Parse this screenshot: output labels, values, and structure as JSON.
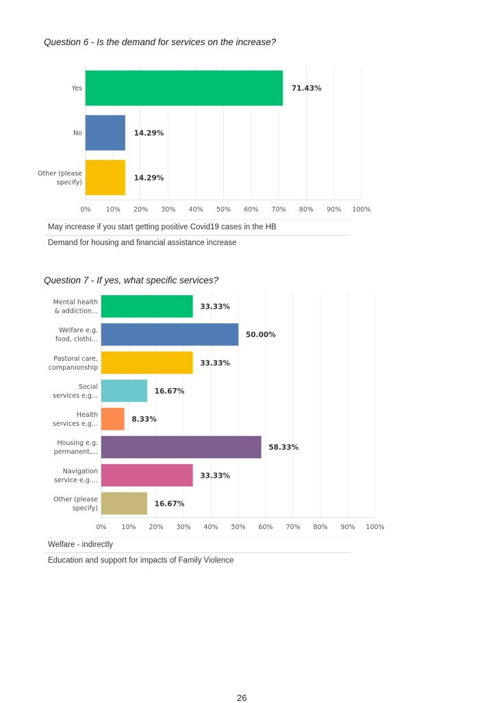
{
  "page": {
    "page_number": "26"
  },
  "questions": [
    {
      "title": "Question 6 - Is the demand for services on the increase?",
      "comments": [
        "May increase if you start getting positive Covid19 cases in the HB",
        "Demand for housing and financial assistance increase"
      ]
    },
    {
      "title": "Question 7 - If yes, what specific services?",
      "comments": [
        "Welfare - indirectly",
        "Education and support for impacts of Family Violence"
      ]
    }
  ],
  "chart_data": [
    {
      "type": "bar",
      "orientation": "horizontal",
      "title": "Question 6 - Is the demand for services on the increase?",
      "categories": [
        [
          "Yes"
        ],
        [
          "No"
        ],
        [
          "Other (please",
          "specify)"
        ]
      ],
      "values": [
        71.43,
        14.29,
        14.29
      ],
      "value_labels": [
        "71.43%",
        "14.29%",
        "14.29%"
      ],
      "colors": [
        "#00bf6f",
        "#507cb6",
        "#f9be00"
      ],
      "xlim": [
        0,
        100
      ],
      "xticks": [
        "0%",
        "10%",
        "20%",
        "30%",
        "40%",
        "50%",
        "60%",
        "70%",
        "80%",
        "90%",
        "100%"
      ],
      "xlabel": "",
      "ylabel": "",
      "grid": true,
      "legend": "none"
    },
    {
      "type": "bar",
      "orientation": "horizontal",
      "title": "Question 7 - If yes, what specific services?",
      "categories": [
        [
          "Mental health",
          "& addiction..."
        ],
        [
          "Welfare e.g.",
          "food, clothi..."
        ],
        [
          "Pastoral care,",
          "companionship"
        ],
        [
          "Social",
          "services e.g..."
        ],
        [
          "Health",
          "services e.g..."
        ],
        [
          "Housing e.g.",
          "permanent,..."
        ],
        [
          "Navigation",
          "service e.g...."
        ],
        [
          "Other (please",
          "specify)"
        ]
      ],
      "values": [
        33.33,
        50.0,
        33.33,
        16.67,
        8.33,
        58.33,
        33.33,
        16.67
      ],
      "value_labels": [
        "33.33%",
        "50.00%",
        "33.33%",
        "16.67%",
        "8.33%",
        "58.33%",
        "33.33%",
        "16.67%"
      ],
      "colors": [
        "#00bf6f",
        "#507cb6",
        "#f9be00",
        "#6bc8cd",
        "#ff8b4f",
        "#7f5e90",
        "#d25f90",
        "#c7b879"
      ],
      "xlim": [
        0,
        100
      ],
      "xticks": [
        "0%",
        "10%",
        "20%",
        "30%",
        "40%",
        "50%",
        "60%",
        "70%",
        "80%",
        "90%",
        "100%"
      ],
      "xlabel": "",
      "ylabel": "",
      "grid": true,
      "legend": "none"
    }
  ]
}
